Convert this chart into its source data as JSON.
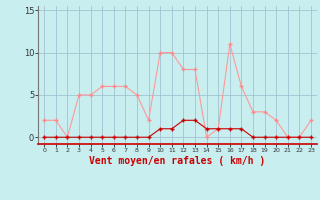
{
  "x": [
    0,
    1,
    2,
    3,
    4,
    5,
    6,
    7,
    8,
    9,
    10,
    11,
    12,
    13,
    14,
    15,
    16,
    17,
    18,
    19,
    20,
    21,
    22,
    23
  ],
  "rafales": [
    2,
    2,
    0,
    5,
    5,
    6,
    6,
    6,
    5,
    2,
    10,
    10,
    8,
    8,
    0,
    1,
    11,
    6,
    3,
    3,
    2,
    0,
    0,
    2
  ],
  "moyen": [
    0,
    0,
    0,
    0,
    0,
    0,
    0,
    0,
    0,
    0,
    1,
    1,
    2,
    2,
    1,
    1,
    1,
    1,
    0,
    0,
    0,
    0,
    0,
    0
  ],
  "line_color_rafales": "#ff9999",
  "line_color_moyen": "#cc0000",
  "marker_color_rafales": "#ff8888",
  "marker_color_moyen": "#cc0000",
  "bg_color": "#c8eef0",
  "grid_color": "#99bbcc",
  "xlabel": "Vent moyen/en rafales ( km/h )",
  "xlabel_color": "#cc0000",
  "xlabel_fontsize": 7,
  "tick_color": "#333333",
  "ytick_labels": [
    "0",
    "5",
    "10",
    "15"
  ],
  "ytick_values": [
    0,
    5,
    10,
    15
  ],
  "ylim": [
    -0.8,
    15.5
  ],
  "xlim": [
    -0.5,
    23.5
  ]
}
